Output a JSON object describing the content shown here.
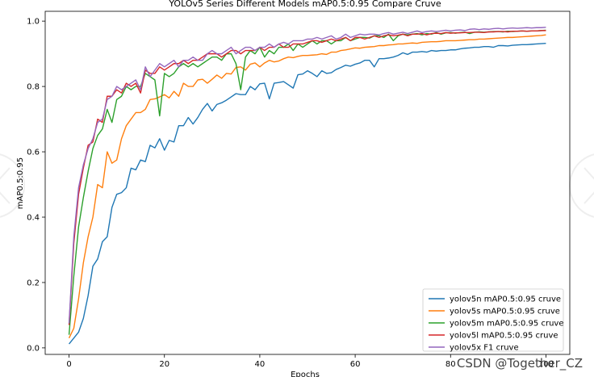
{
  "chart_data": {
    "type": "line",
    "title": "YOLOv5 Series Different Models mAP0.5:0.95 Compare Cruve",
    "xlabel": "Epochs",
    "ylabel": "mAP0.5:0.95",
    "xlim": [
      -5,
      105
    ],
    "ylim": [
      -0.02,
      1.03
    ],
    "xticks": [
      0,
      20,
      40,
      60,
      80,
      100
    ],
    "yticks": [
      0.0,
      0.2,
      0.4,
      0.6,
      0.8,
      1.0
    ],
    "xtick_labels": [
      "0",
      "20",
      "40",
      "60",
      "80",
      "100"
    ],
    "ytick_labels": [
      "0.0",
      "0.2",
      "0.4",
      "0.6",
      "0.8",
      "1.0"
    ],
    "grid": false,
    "legend_position": "lower-right",
    "x": [
      0,
      1,
      2,
      3,
      4,
      5,
      6,
      7,
      8,
      9,
      10,
      11,
      12,
      13,
      14,
      15,
      16,
      17,
      18,
      19,
      20,
      21,
      22,
      23,
      24,
      25,
      26,
      27,
      28,
      29,
      30,
      31,
      32,
      33,
      34,
      35,
      36,
      37,
      38,
      39,
      40,
      41,
      42,
      43,
      44,
      45,
      46,
      47,
      48,
      49,
      50,
      51,
      52,
      53,
      54,
      55,
      56,
      57,
      58,
      59,
      60,
      61,
      62,
      63,
      64,
      65,
      66,
      67,
      68,
      69,
      70,
      71,
      72,
      73,
      74,
      75,
      76,
      77,
      78,
      79,
      80,
      81,
      82,
      83,
      84,
      85,
      86,
      87,
      88,
      89,
      90,
      91,
      92,
      93,
      94,
      95,
      96,
      97,
      98,
      99,
      100
    ],
    "series": [
      {
        "name": "yolov5n mAP0.5:0.95 cruve",
        "color": "#1f77b4",
        "values": [
          0.012,
          0.03,
          0.048,
          0.09,
          0.16,
          0.25,
          0.272,
          0.325,
          0.34,
          0.43,
          0.47,
          0.475,
          0.49,
          0.55,
          0.545,
          0.575,
          0.57,
          0.62,
          0.612,
          0.64,
          0.605,
          0.635,
          0.63,
          0.68,
          0.68,
          0.705,
          0.685,
          0.705,
          0.73,
          0.748,
          0.725,
          0.745,
          0.75,
          0.758,
          0.768,
          0.778,
          0.775,
          0.775,
          0.8,
          0.79,
          0.808,
          0.81,
          0.762,
          0.81,
          0.812,
          0.815,
          0.805,
          0.795,
          0.836,
          0.838,
          0.848,
          0.84,
          0.83,
          0.848,
          0.84,
          0.842,
          0.852,
          0.858,
          0.865,
          0.862,
          0.868,
          0.872,
          0.88,
          0.88,
          0.86,
          0.885,
          0.885,
          0.887,
          0.89,
          0.895,
          0.903,
          0.898,
          0.905,
          0.905,
          0.907,
          0.905,
          0.91,
          0.908,
          0.91,
          0.91,
          0.912,
          0.912,
          0.915,
          0.917,
          0.918,
          0.92,
          0.92,
          0.922,
          0.922,
          0.92,
          0.925,
          0.925,
          0.924,
          0.926,
          0.927,
          0.928,
          0.928,
          0.929,
          0.93,
          0.931,
          0.932
        ]
      },
      {
        "name": "yolov5s mAP0.5:0.95 cruve",
        "color": "#ff7f0e",
        "values": [
          0.03,
          0.06,
          0.15,
          0.26,
          0.34,
          0.4,
          0.5,
          0.49,
          0.6,
          0.565,
          0.575,
          0.64,
          0.68,
          0.7,
          0.72,
          0.72,
          0.73,
          0.76,
          0.762,
          0.768,
          0.775,
          0.765,
          0.785,
          0.77,
          0.81,
          0.8,
          0.8,
          0.82,
          0.822,
          0.81,
          0.822,
          0.835,
          0.825,
          0.84,
          0.838,
          0.858,
          0.86,
          0.85,
          0.868,
          0.872,
          0.86,
          0.872,
          0.88,
          0.875,
          0.878,
          0.885,
          0.89,
          0.888,
          0.892,
          0.895,
          0.895,
          0.896,
          0.897,
          0.9,
          0.898,
          0.905,
          0.905,
          0.91,
          0.912,
          0.915,
          0.918,
          0.917,
          0.92,
          0.921,
          0.922,
          0.925,
          0.925,
          0.927,
          0.928,
          0.93,
          0.93,
          0.932,
          0.933,
          0.932,
          0.935,
          0.936,
          0.937,
          0.937,
          0.938,
          0.94,
          0.94,
          0.94,
          0.941,
          0.942,
          0.943,
          0.943,
          0.945,
          0.945,
          0.946,
          0.947,
          0.948,
          0.949,
          0.95,
          0.95,
          0.951,
          0.952,
          0.953,
          0.954,
          0.955,
          0.956,
          0.958
        ]
      },
      {
        "name": "yolov5m mAP0.5:0.95 cruve",
        "color": "#2ca02c",
        "values": [
          0.04,
          0.22,
          0.37,
          0.46,
          0.54,
          0.61,
          0.65,
          0.67,
          0.73,
          0.69,
          0.76,
          0.77,
          0.8,
          0.79,
          0.8,
          0.8,
          0.84,
          0.83,
          0.82,
          0.71,
          0.84,
          0.83,
          0.84,
          0.86,
          0.87,
          0.86,
          0.87,
          0.86,
          0.87,
          0.88,
          0.89,
          0.89,
          0.88,
          0.9,
          0.9,
          0.87,
          0.79,
          0.89,
          0.91,
          0.9,
          0.92,
          0.89,
          0.91,
          0.9,
          0.92,
          0.92,
          0.93,
          0.91,
          0.93,
          0.92,
          0.93,
          0.94,
          0.93,
          0.94,
          0.94,
          0.93,
          0.94,
          0.94,
          0.95,
          0.94,
          0.945,
          0.95,
          0.95,
          0.948,
          0.955,
          0.955,
          0.95,
          0.96,
          0.94,
          0.955,
          0.96,
          0.958,
          0.96,
          0.962,
          0.958,
          0.962,
          0.96,
          0.965,
          0.96,
          0.964,
          0.965,
          0.963,
          0.965,
          0.966,
          0.962,
          0.966,
          0.967,
          0.966,
          0.967,
          0.968,
          0.968,
          0.967,
          0.969,
          0.968,
          0.969,
          0.97,
          0.969,
          0.97,
          0.97,
          0.971,
          0.972
        ]
      },
      {
        "name": "yolov5l mAP0.5:0.95 cruve",
        "color": "#d62728",
        "values": [
          0.07,
          0.32,
          0.47,
          0.55,
          0.62,
          0.63,
          0.7,
          0.69,
          0.77,
          0.77,
          0.79,
          0.78,
          0.81,
          0.8,
          0.81,
          0.78,
          0.85,
          0.84,
          0.84,
          0.86,
          0.85,
          0.86,
          0.87,
          0.87,
          0.88,
          0.87,
          0.88,
          0.88,
          0.89,
          0.9,
          0.9,
          0.9,
          0.89,
          0.9,
          0.91,
          0.91,
          0.9,
          0.91,
          0.91,
          0.91,
          0.92,
          0.91,
          0.92,
          0.92,
          0.93,
          0.92,
          0.92,
          0.93,
          0.93,
          0.93,
          0.935,
          0.94,
          0.94,
          0.935,
          0.94,
          0.945,
          0.94,
          0.945,
          0.95,
          0.94,
          0.95,
          0.95,
          0.945,
          0.95,
          0.955,
          0.95,
          0.955,
          0.958,
          0.955,
          0.957,
          0.96,
          0.955,
          0.96,
          0.96,
          0.962,
          0.958,
          0.962,
          0.963,
          0.962,
          0.965,
          0.963,
          0.964,
          0.964,
          0.965,
          0.965,
          0.966,
          0.966,
          0.965,
          0.967,
          0.967,
          0.968,
          0.968,
          0.967,
          0.969,
          0.969,
          0.97,
          0.969,
          0.97,
          0.97,
          0.971,
          0.971
        ]
      },
      {
        "name": "yolov5x F1 cruve",
        "color": "#9467bd",
        "values": [
          0.075,
          0.34,
          0.49,
          0.56,
          0.61,
          0.64,
          0.69,
          0.7,
          0.76,
          0.77,
          0.8,
          0.79,
          0.8,
          0.81,
          0.82,
          0.79,
          0.86,
          0.83,
          0.85,
          0.87,
          0.86,
          0.87,
          0.88,
          0.86,
          0.88,
          0.88,
          0.89,
          0.88,
          0.88,
          0.9,
          0.91,
          0.9,
          0.9,
          0.91,
          0.92,
          0.9,
          0.91,
          0.92,
          0.92,
          0.91,
          0.92,
          0.92,
          0.93,
          0.92,
          0.93,
          0.935,
          0.93,
          0.94,
          0.94,
          0.94,
          0.945,
          0.945,
          0.95,
          0.945,
          0.95,
          0.955,
          0.945,
          0.95,
          0.96,
          0.95,
          0.955,
          0.96,
          0.958,
          0.96,
          0.96,
          0.958,
          0.962,
          0.965,
          0.96,
          0.963,
          0.966,
          0.962,
          0.966,
          0.97,
          0.965,
          0.968,
          0.97,
          0.968,
          0.97,
          0.972,
          0.97,
          0.972,
          0.973,
          0.971,
          0.975,
          0.976,
          0.974,
          0.976,
          0.975,
          0.977,
          0.978,
          0.976,
          0.978,
          0.979,
          0.978,
          0.979,
          0.98,
          0.979,
          0.98,
          0.98,
          0.981
        ]
      }
    ]
  },
  "watermark": {
    "text": "CSDN @Together_CZ"
  }
}
